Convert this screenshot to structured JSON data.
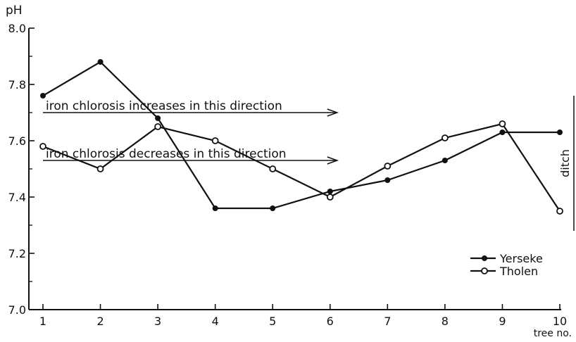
{
  "chart_data": {
    "type": "line",
    "ylabel": "pH",
    "xlabel": "tree no.",
    "x": [
      1,
      2,
      3,
      4,
      5,
      6,
      7,
      8,
      9,
      10
    ],
    "x_tick_labels": [
      "1",
      "2",
      "3",
      "4",
      "5",
      "6",
      "7",
      "8",
      "9",
      "10"
    ],
    "y_tick_values": [
      7.0,
      7.2,
      7.4,
      7.6,
      7.8,
      8.0
    ],
    "y_tick_labels": [
      "7.0",
      "7.2",
      "7.4",
      "7.6",
      "7.8",
      "8.0"
    ],
    "ylim": [
      7.0,
      8.0
    ],
    "xlim": [
      1,
      10
    ],
    "grid": false,
    "legend_position": "lower-right",
    "series": [
      {
        "name": "Yerseke",
        "marker": "filled-circle",
        "color": "#111111",
        "values": [
          7.76,
          7.88,
          7.68,
          7.36,
          7.36,
          7.42,
          7.46,
          7.53,
          7.63,
          7.63
        ]
      },
      {
        "name": "Tholen",
        "marker": "open-circle",
        "color": "#111111",
        "values": [
          7.58,
          7.5,
          7.65,
          7.6,
          7.5,
          7.4,
          7.51,
          7.61,
          7.66,
          7.35
        ]
      }
    ],
    "annotations": [
      {
        "text": "iron chlorosis increases in this direction",
        "y": 7.7,
        "x_start": 1,
        "x_end": 6
      },
      {
        "text": "iron chlorosis decreases in this direction",
        "y": 7.53,
        "x_start": 1,
        "x_end": 6
      }
    ],
    "side_label": "ditch",
    "side_bracket_range": [
      7.28,
      7.76
    ]
  }
}
